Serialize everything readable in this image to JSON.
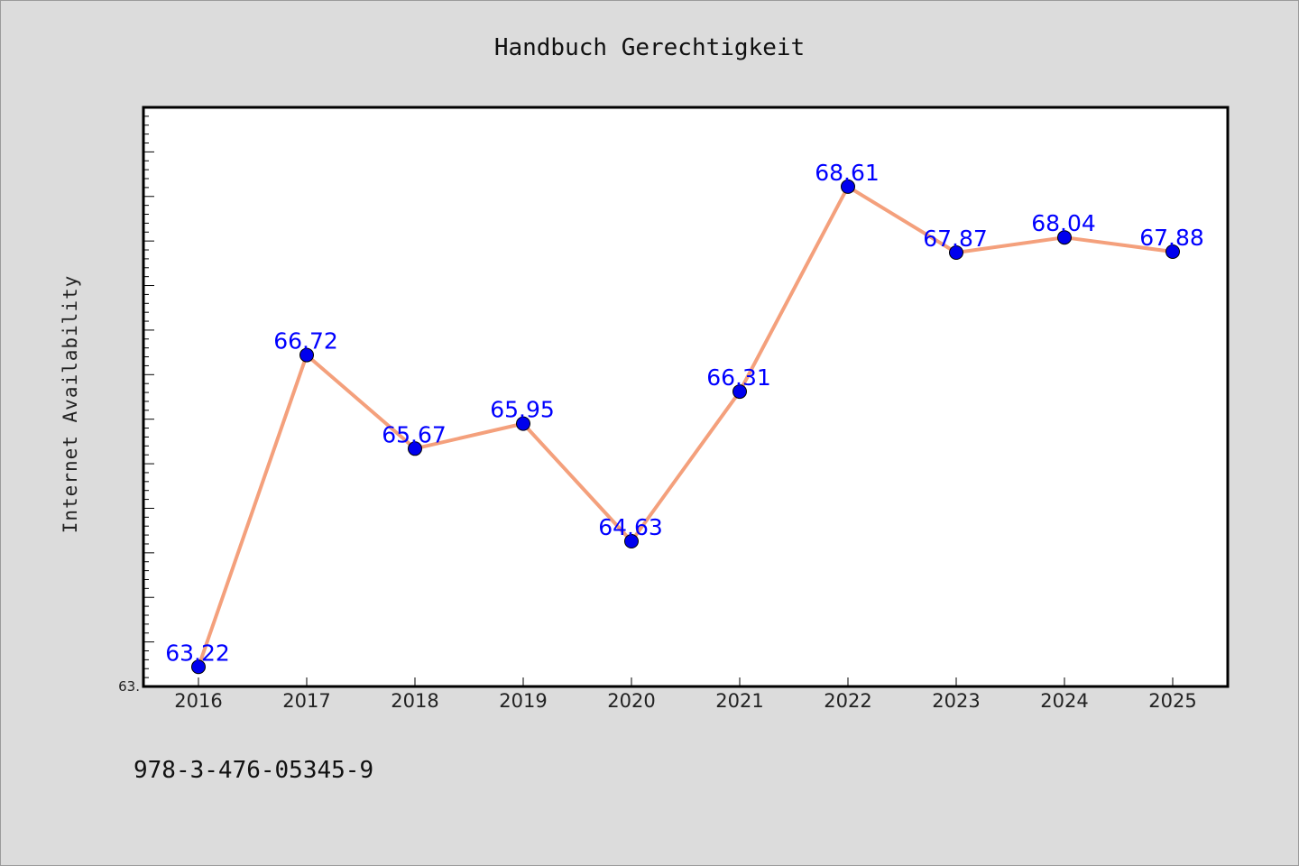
{
  "chart_data": {
    "type": "line",
    "title": "Handbuch Gerechtigkeit",
    "xlabel": "",
    "ylabel": "Internet Availability",
    "categories": [
      "2016",
      "2017",
      "2018",
      "2019",
      "2020",
      "2021",
      "2022",
      "2023",
      "2024",
      "2025"
    ],
    "series": [
      {
        "values": [
          63.22,
          66.72,
          65.67,
          65.95,
          64.63,
          66.31,
          68.61,
          67.87,
          68.04,
          67.88
        ],
        "data_labels": [
          "63.22",
          "66.72",
          "65.67",
          "65.95",
          "64.63",
          "66.31",
          "68.61",
          "67.87",
          "68.04",
          "67.88"
        ],
        "line_color": "#f4a07c",
        "marker_color": "#0000ee"
      }
    ],
    "ylim": [
      63.0,
      69.5
    ],
    "ytick_labels": [
      "63."
    ],
    "grid": false,
    "legend": "none"
  },
  "footer": {
    "isbn": "978-3-476-05345-9"
  },
  "colors": {
    "background": "#dcdcdc",
    "plot_background": "#ffffff",
    "label_color": "#0000ff"
  }
}
